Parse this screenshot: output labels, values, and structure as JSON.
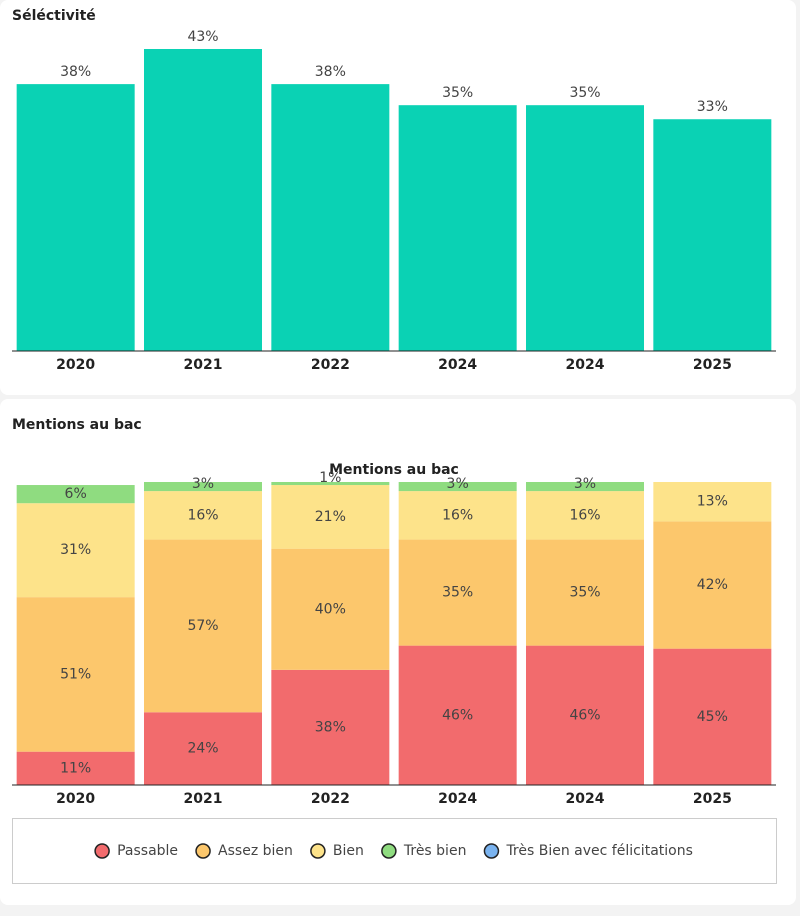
{
  "chart_data": [
    {
      "type": "bar",
      "title": "Séléctivité",
      "categories": [
        "2020",
        "2021",
        "2022",
        "2024",
        "2024",
        "2025"
      ],
      "values": [
        38,
        43,
        38,
        35,
        35,
        33
      ],
      "value_labels": [
        "38%",
        "43%",
        "38%",
        "35%",
        "35%",
        "33%"
      ],
      "color": "#0ad2b4"
    },
    {
      "type": "stacked-bar",
      "heading": "Mentions au bac",
      "title": "Mentions au bac",
      "categories": [
        "2020",
        "2021",
        "2022",
        "2024",
        "2024",
        "2025"
      ],
      "series": [
        {
          "name": "Passable",
          "color": "#f26b6d",
          "values": [
            11,
            24,
            38,
            46,
            46,
            45
          ],
          "value_labels": [
            "11%",
            "24%",
            "38%",
            "46%",
            "46%",
            "45%"
          ]
        },
        {
          "name": "Assez bien",
          "color": "#fcc76c",
          "values": [
            51,
            57,
            40,
            35,
            35,
            42
          ],
          "value_labels": [
            "51%",
            "57%",
            "40%",
            "35%",
            "35%",
            "42%"
          ]
        },
        {
          "name": "Bien",
          "color": "#fde38a",
          "values": [
            31,
            16,
            21,
            16,
            16,
            13
          ],
          "value_labels": [
            "31%",
            "16%",
            "21%",
            "16%",
            "16%",
            "13%"
          ]
        },
        {
          "name": "Très bien",
          "color": "#8fdc80",
          "values": [
            6,
            3,
            1,
            3,
            3,
            0
          ],
          "value_labels": [
            "6%",
            "3%",
            "1%",
            "3%",
            "3%",
            null
          ]
        },
        {
          "name": "Très Bien avec félicitations",
          "color": "#7ab3ef",
          "values": [
            0,
            0,
            0,
            0,
            0,
            0
          ],
          "value_labels": [
            null,
            null,
            null,
            null,
            null,
            null
          ]
        }
      ],
      "legend": "bottom"
    }
  ]
}
